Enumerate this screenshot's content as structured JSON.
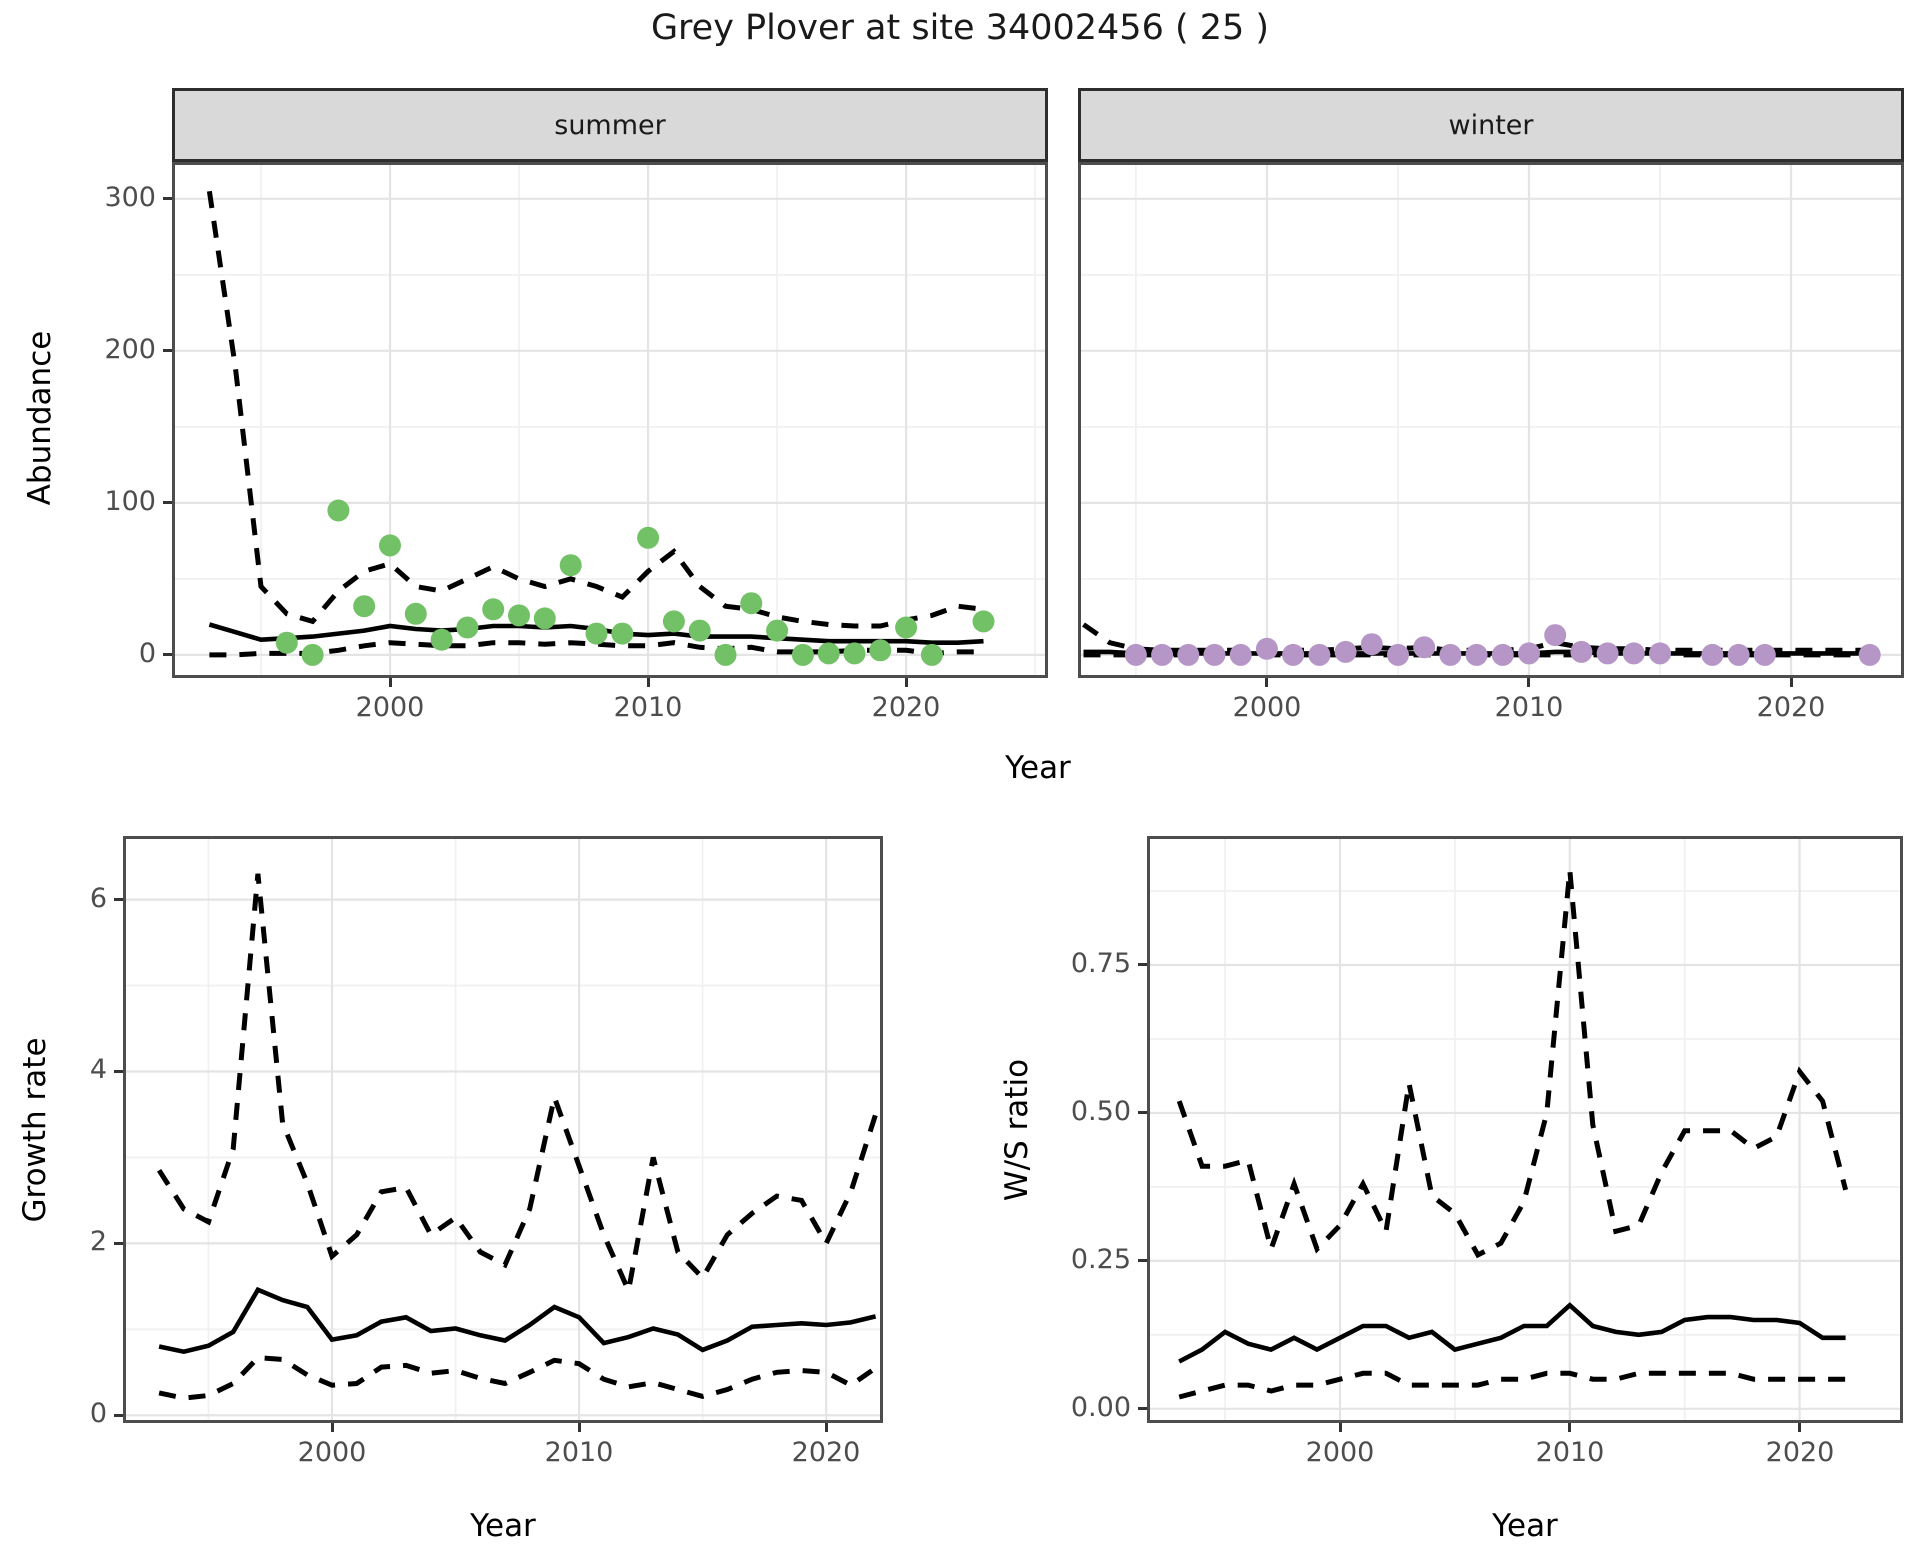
{
  "title": "Grey Plover at site 34002456 ( 25 )",
  "facets": {
    "summer": "summer",
    "winter": "winter"
  },
  "axis_titles": {
    "x": "Year",
    "y_top": "Abundance",
    "y_growth": "Growth rate",
    "y_ws": "W/S ratio"
  },
  "colors": {
    "summer_point": "#73c166",
    "winter_point": "#b696c6",
    "line": "#000000",
    "strip_bg": "#d9d9d9",
    "strip_border": "#2e2e2e",
    "panel_border": "#4d4d4d",
    "grid_major": "#e4e4e4",
    "grid_minor": "#f1f1f1",
    "tick_text": "#4d4d4d"
  },
  "chart_data": [
    {
      "panel": "summer",
      "type": "line+scatter",
      "facet_label": "summer",
      "xlabel": "Year",
      "ylabel": "Abundance",
      "xlim": [
        1991.55,
        2025.5
      ],
      "ylim": [
        -15.2,
        324.2
      ],
      "x_major": [
        2000,
        2010,
        2020
      ],
      "x_minor": [
        1995,
        2005,
        2015,
        2025
      ],
      "y_major": [
        0,
        100,
        200,
        300
      ],
      "y_minor": [
        50,
        150,
        250
      ],
      "x_tick_labels": [
        "2000",
        "2010",
        "2020"
      ],
      "y_tick_labels": [
        "0",
        "100",
        "200",
        "300"
      ],
      "show_y_labels": true,
      "grid": true,
      "legend": "none",
      "point_color": "#73c166",
      "points": {
        "years": [
          1996,
          1997,
          1998,
          1999,
          2000,
          2001,
          2002,
          2003,
          2004,
          2005,
          2006,
          2007,
          2008,
          2009,
          2010,
          2011,
          2012,
          2013,
          2014,
          2015,
          2016,
          2017,
          2018,
          2019,
          2020,
          2021,
          2023
        ],
        "values": [
          8,
          0,
          95,
          32,
          72,
          27,
          10,
          18,
          30,
          26,
          24,
          59,
          14,
          14,
          77,
          22,
          16,
          0,
          34,
          16,
          0,
          1,
          1,
          3,
          18,
          0,
          22
        ]
      },
      "line_years": [
        1993,
        1994,
        1995,
        1996,
        1997,
        1998,
        1999,
        2000,
        2001,
        2002,
        2003,
        2004,
        2005,
        2006,
        2007,
        2008,
        2009,
        2010,
        2011,
        2012,
        2013,
        2014,
        2015,
        2016,
        2017,
        2018,
        2019,
        2020,
        2021,
        2022,
        2023
      ],
      "series": [
        {
          "name": "median",
          "style": "solid",
          "values": [
            20,
            15,
            10,
            11,
            12,
            14,
            16,
            19,
            17,
            16,
            17,
            19,
            19,
            18,
            19,
            17,
            14,
            13,
            14,
            12,
            12,
            12,
            11,
            10,
            9,
            9,
            9,
            9,
            8,
            8,
            9
          ]
        },
        {
          "name": "upper_ci",
          "style": "dashed",
          "values": [
            305,
            190,
            45,
            27,
            22,
            42,
            55,
            60,
            45,
            42,
            50,
            58,
            50,
            45,
            50,
            45,
            38,
            55,
            68,
            45,
            32,
            30,
            25,
            22,
            20,
            19,
            19,
            23,
            26,
            32,
            30
          ]
        },
        {
          "name": "lower_ci",
          "style": "dashed",
          "values": [
            0,
            0,
            1,
            1,
            1,
            3,
            6,
            8,
            7,
            6,
            6,
            8,
            8,
            7,
            8,
            7,
            6,
            6,
            8,
            5,
            4,
            5,
            2,
            2,
            2,
            3,
            3,
            3,
            1,
            2,
            2
          ]
        }
      ]
    },
    {
      "panel": "winter",
      "type": "line+scatter",
      "facet_label": "winter",
      "xlabel": "Year",
      "ylabel": "Abundance",
      "xlim": [
        1992.79,
        2024.31
      ],
      "ylim": [
        -15.2,
        324.2
      ],
      "x_major": [
        2000,
        2010,
        2020
      ],
      "x_minor": [
        1995,
        2005,
        2015
      ],
      "y_major": [
        0,
        100,
        200,
        300
      ],
      "y_minor": [
        50,
        150,
        250
      ],
      "x_tick_labels": [
        "2000",
        "2010",
        "2020"
      ],
      "y_tick_labels": [],
      "show_y_labels": false,
      "grid": true,
      "legend": "none",
      "point_color": "#b696c6",
      "points": {
        "years": [
          1995,
          1996,
          1997,
          1998,
          1999,
          2000,
          2001,
          2002,
          2003,
          2004,
          2005,
          2006,
          2007,
          2008,
          2009,
          2010,
          2011,
          2012,
          2013,
          2014,
          2015,
          2017,
          2018,
          2019,
          2023
        ],
        "values": [
          0,
          0,
          0,
          0,
          0,
          4,
          0,
          0,
          2,
          7,
          0,
          5,
          0,
          0,
          0,
          1,
          13,
          2,
          1,
          1,
          1,
          0,
          0,
          0,
          0
        ]
      },
      "line_years": [
        1993,
        1994,
        1995,
        1996,
        1997,
        1998,
        1999,
        2000,
        2001,
        2002,
        2003,
        2004,
        2005,
        2006,
        2007,
        2008,
        2009,
        2010,
        2011,
        2012,
        2013,
        2014,
        2015,
        2016,
        2017,
        2018,
        2019,
        2020,
        2021,
        2022,
        2023
      ],
      "series": [
        {
          "name": "median",
          "style": "solid",
          "values": [
            2,
            2,
            1,
            1,
            1,
            1,
            1,
            1,
            1,
            1,
            1,
            1,
            1,
            1,
            1,
            1,
            1,
            1,
            2,
            2,
            1,
            1,
            1,
            1,
            1,
            1,
            1,
            1,
            1,
            1,
            1
          ]
        },
        {
          "name": "upper_ci",
          "style": "dashed",
          "values": [
            20,
            8,
            4,
            3,
            3,
            3,
            3,
            4,
            3,
            3,
            4,
            5,
            4,
            5,
            3,
            3,
            3,
            4,
            8,
            5,
            4,
            4,
            3,
            3,
            3,
            3,
            3,
            3,
            3,
            3,
            3
          ]
        },
        {
          "name": "lower_ci",
          "style": "dashed",
          "values": [
            0,
            0,
            0,
            0,
            0,
            0,
            0,
            0,
            0,
            0,
            0,
            0,
            0,
            0,
            0,
            0,
            0,
            0,
            0,
            0,
            0,
            0,
            0,
            0,
            0,
            0,
            0,
            0,
            0,
            0,
            0
          ]
        }
      ]
    },
    {
      "panel": "growth",
      "type": "line",
      "facet_label": "",
      "xlabel": "Year",
      "ylabel": "Growth rate",
      "xlim": [
        1991.54,
        2022.3
      ],
      "ylim": [
        -0.09,
        6.74
      ],
      "x_major": [
        2000,
        2010,
        2020
      ],
      "x_minor": [
        1995,
        2005,
        2015
      ],
      "y_major": [
        0,
        2,
        4,
        6
      ],
      "y_minor": [
        1,
        3,
        5
      ],
      "x_tick_labels": [
        "2000",
        "2010",
        "2020"
      ],
      "y_tick_labels": [
        "0",
        "2",
        "4",
        "6"
      ],
      "show_y_labels": true,
      "grid": true,
      "legend": "none",
      "points": null,
      "line_years": [
        1993,
        1994,
        1995,
        1996,
        1997,
        1998,
        1999,
        2000,
        2001,
        2002,
        2003,
        2004,
        2005,
        2006,
        2007,
        2008,
        2009,
        2010,
        2011,
        2012,
        2013,
        2014,
        2015,
        2016,
        2017,
        2018,
        2019,
        2020,
        2021,
        2022
      ],
      "series": [
        {
          "name": "median",
          "style": "solid",
          "values": [
            0.8,
            0.74,
            0.81,
            0.97,
            1.46,
            1.34,
            1.26,
            0.88,
            0.93,
            1.09,
            1.14,
            0.98,
            1.01,
            0.93,
            0.87,
            1.05,
            1.26,
            1.14,
            0.84,
            0.91,
            1.01,
            0.94,
            0.76,
            0.87,
            1.03,
            1.05,
            1.07,
            1.05,
            1.08,
            1.15
          ]
        },
        {
          "name": "upper_ci",
          "style": "dashed",
          "values": [
            2.85,
            2.4,
            2.25,
            3.1,
            6.3,
            3.4,
            2.7,
            1.85,
            2.1,
            2.6,
            2.65,
            2.1,
            2.3,
            1.9,
            1.75,
            2.4,
            3.7,
            2.9,
            2.1,
            1.45,
            3.0,
            1.9,
            1.6,
            2.1,
            2.35,
            2.55,
            2.5,
            2.0,
            2.6,
            3.5
          ]
        },
        {
          "name": "lower_ci",
          "style": "dashed",
          "values": [
            0.26,
            0.2,
            0.23,
            0.37,
            0.67,
            0.65,
            0.47,
            0.35,
            0.37,
            0.56,
            0.58,
            0.49,
            0.52,
            0.43,
            0.37,
            0.5,
            0.64,
            0.6,
            0.42,
            0.33,
            0.38,
            0.3,
            0.22,
            0.3,
            0.42,
            0.5,
            0.52,
            0.5,
            0.35,
            0.55
          ]
        }
      ]
    },
    {
      "panel": "ws",
      "type": "line",
      "facet_label": "",
      "xlabel": "Year",
      "ylabel": "W/S ratio",
      "xlim": [
        1991.6,
        2024.5
      ],
      "ylim": [
        -0.024,
        0.968
      ],
      "x_major": [
        2000,
        2010,
        2020
      ],
      "x_minor": [
        1995,
        2005,
        2015
      ],
      "y_major": [
        0,
        0.25,
        0.5,
        0.75
      ],
      "y_minor": [
        0.125,
        0.375,
        0.625,
        0.875
      ],
      "x_tick_labels": [
        "2000",
        "2010",
        "2020"
      ],
      "y_tick_labels": [
        "0.00",
        "0.25",
        "0.50",
        "0.75"
      ],
      "show_y_labels": true,
      "grid": true,
      "legend": "none",
      "points": null,
      "line_years": [
        1993,
        1994,
        1995,
        1996,
        1997,
        1998,
        1999,
        2000,
        2001,
        2002,
        2003,
        2004,
        2005,
        2006,
        2007,
        2008,
        2009,
        2010,
        2011,
        2012,
        2013,
        2014,
        2015,
        2016,
        2017,
        2018,
        2019,
        2020,
        2021,
        2022
      ],
      "series": [
        {
          "name": "median",
          "style": "solid",
          "values": [
            0.08,
            0.1,
            0.13,
            0.11,
            0.1,
            0.12,
            0.1,
            0.12,
            0.14,
            0.14,
            0.12,
            0.13,
            0.1,
            0.11,
            0.12,
            0.14,
            0.14,
            0.175,
            0.14,
            0.13,
            0.125,
            0.13,
            0.15,
            0.155,
            0.155,
            0.15,
            0.15,
            0.145,
            0.12,
            0.12
          ]
        },
        {
          "name": "upper_ci",
          "style": "dashed",
          "values": [
            0.52,
            0.41,
            0.41,
            0.42,
            0.27,
            0.38,
            0.27,
            0.31,
            0.38,
            0.3,
            0.55,
            0.36,
            0.33,
            0.26,
            0.28,
            0.35,
            0.5,
            0.91,
            0.48,
            0.3,
            0.31,
            0.4,
            0.47,
            0.47,
            0.47,
            0.44,
            0.46,
            0.57,
            0.52,
            0.37
          ]
        },
        {
          "name": "lower_ci",
          "style": "dashed",
          "values": [
            0.02,
            0.03,
            0.04,
            0.04,
            0.03,
            0.04,
            0.04,
            0.05,
            0.06,
            0.06,
            0.04,
            0.04,
            0.04,
            0.04,
            0.05,
            0.05,
            0.06,
            0.06,
            0.05,
            0.05,
            0.06,
            0.06,
            0.06,
            0.06,
            0.06,
            0.05,
            0.05,
            0.05,
            0.05,
            0.05
          ]
        }
      ]
    }
  ]
}
